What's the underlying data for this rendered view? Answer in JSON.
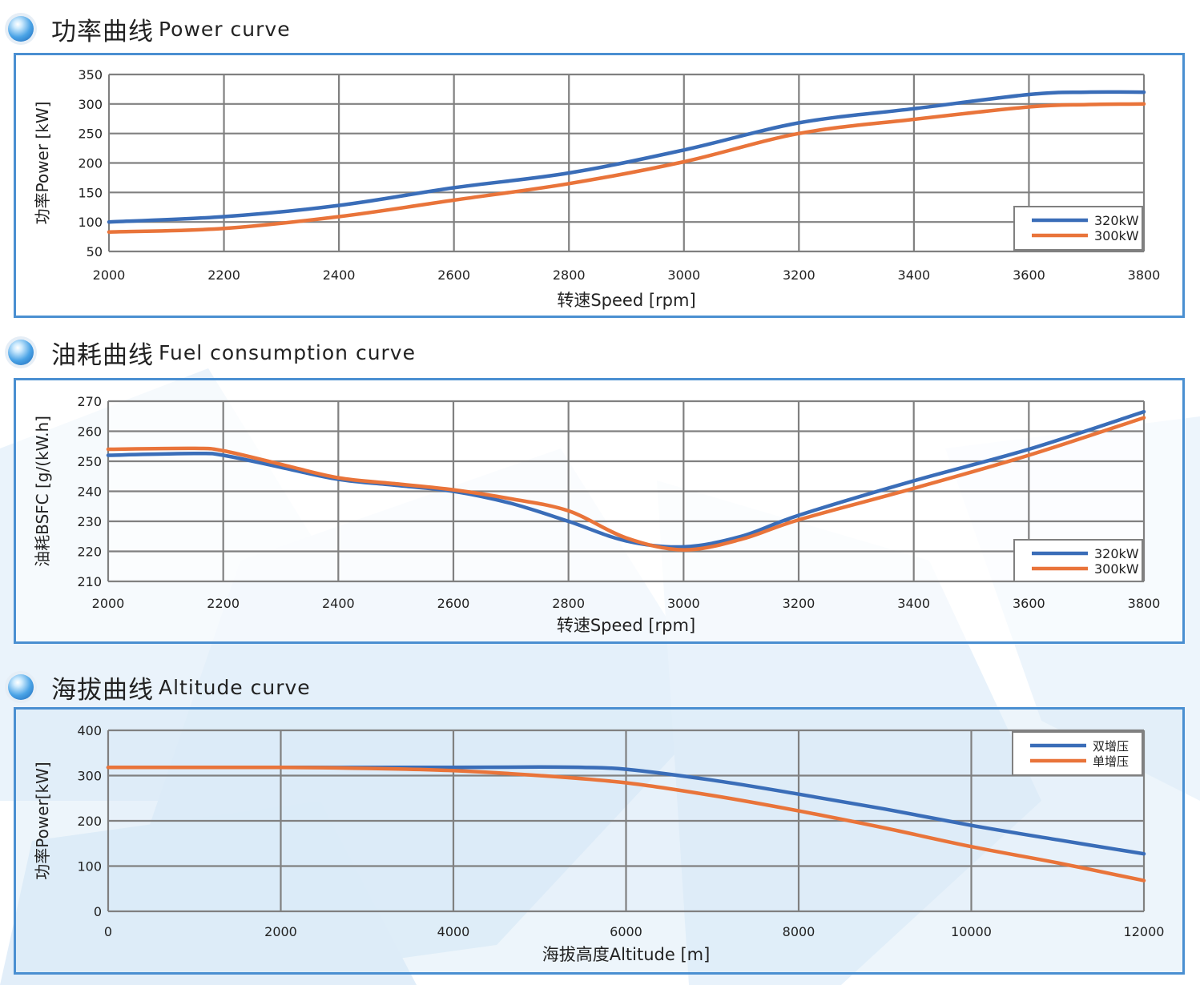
{
  "sections": [
    {
      "title_cn": "功率曲线",
      "title_en": "Power curve"
    },
    {
      "title_cn": "油耗曲线",
      "title_en": "Fuel consumption curve"
    },
    {
      "title_cn": "海拔曲线",
      "title_en": "Altitude curve"
    }
  ],
  "colors": {
    "blue_series": "#3a6db8",
    "orange_series": "#e9743a",
    "panel_border": "#4a8fd1",
    "grid": "#808080"
  },
  "chart_data": [
    {
      "type": "line",
      "title": "功率曲线 Power curve",
      "xlabel": "转速Speed [rpm]",
      "ylabel": "功率Power [kW]",
      "xlim": [
        2000,
        3800
      ],
      "ylim": [
        50,
        350
      ],
      "xticks": [
        2000,
        2200,
        2400,
        2600,
        2800,
        3000,
        3200,
        3400,
        3600,
        3800
      ],
      "yticks": [
        50,
        100,
        150,
        200,
        250,
        300,
        350
      ],
      "legend_position": "bottom-right",
      "series": [
        {
          "name": "320kW",
          "color": "#3a6db8",
          "x": [
            2000,
            2200,
            2400,
            2600,
            2800,
            3000,
            3200,
            3400,
            3600,
            3700,
            3800
          ],
          "y": [
            100,
            109,
            128,
            158,
            183,
            222,
            268,
            292,
            316,
            320,
            320
          ]
        },
        {
          "name": "300kW",
          "color": "#e9743a",
          "x": [
            2000,
            2200,
            2400,
            2600,
            2800,
            3000,
            3200,
            3400,
            3600,
            3700,
            3800
          ],
          "y": [
            83,
            89,
            109,
            137,
            165,
            202,
            250,
            274,
            295,
            299,
            300
          ]
        }
      ]
    },
    {
      "type": "line",
      "title": "油耗曲线 Fuel consumption curve",
      "xlabel": "转速Speed [rpm]",
      "ylabel": "油耗BSFC [g/(kW.h]",
      "xlim": [
        2000,
        3800
      ],
      "ylim": [
        210,
        270
      ],
      "xticks": [
        2000,
        2200,
        2400,
        2600,
        2800,
        3000,
        3200,
        3400,
        3600,
        3800
      ],
      "yticks": [
        210,
        220,
        230,
        240,
        250,
        260,
        270
      ],
      "legend_position": "bottom-right",
      "series": [
        {
          "name": "320kW",
          "color": "#3a6db8",
          "x": [
            2000,
            2150,
            2200,
            2300,
            2400,
            2500,
            2600,
            2700,
            2800,
            2900,
            3000,
            3100,
            3200,
            3400,
            3600,
            3800
          ],
          "y": [
            252,
            252.6,
            252,
            248,
            244,
            242,
            240,
            236,
            230,
            223.5,
            221.5,
            225,
            232,
            243.5,
            254,
            266.5
          ]
        },
        {
          "name": "300kW",
          "color": "#e9743a",
          "x": [
            2000,
            2150,
            2200,
            2300,
            2400,
            2500,
            2600,
            2700,
            2800,
            2900,
            3000,
            3100,
            3200,
            3400,
            3600,
            3800
          ],
          "y": [
            254,
            254.3,
            253.5,
            249,
            244.5,
            242.5,
            240.5,
            237.5,
            233.5,
            224.5,
            220.5,
            224,
            230.5,
            241,
            252,
            264.5
          ]
        }
      ]
    },
    {
      "type": "line",
      "title": "海拔曲线 Altitude curve",
      "xlabel": "海拔高度Altitude [m]",
      "ylabel": "功率Power[kW]",
      "xlim": [
        0,
        12000
      ],
      "ylim": [
        0,
        400
      ],
      "xticks": [
        0,
        2000,
        4000,
        6000,
        8000,
        10000,
        12000
      ],
      "yticks": [
        0,
        100,
        200,
        300,
        400
      ],
      "legend_position": "top-right",
      "series": [
        {
          "name": "双增压",
          "color": "#3a6db8",
          "x": [
            0,
            2000,
            4000,
            5000,
            5500,
            6000,
            7000,
            8000,
            9000,
            10000,
            11000,
            12000
          ],
          "y": [
            318,
            318,
            318,
            319,
            318,
            314,
            290,
            259,
            226,
            190,
            158,
            127
          ]
        },
        {
          "name": "单增压",
          "color": "#e9743a",
          "x": [
            0,
            2000,
            3000,
            4000,
            5000,
            6000,
            7000,
            8000,
            9000,
            10000,
            11000,
            12000
          ],
          "y": [
            318,
            318,
            316,
            311,
            300,
            284,
            256,
            222,
            184,
            143,
            107,
            68
          ]
        }
      ]
    }
  ]
}
